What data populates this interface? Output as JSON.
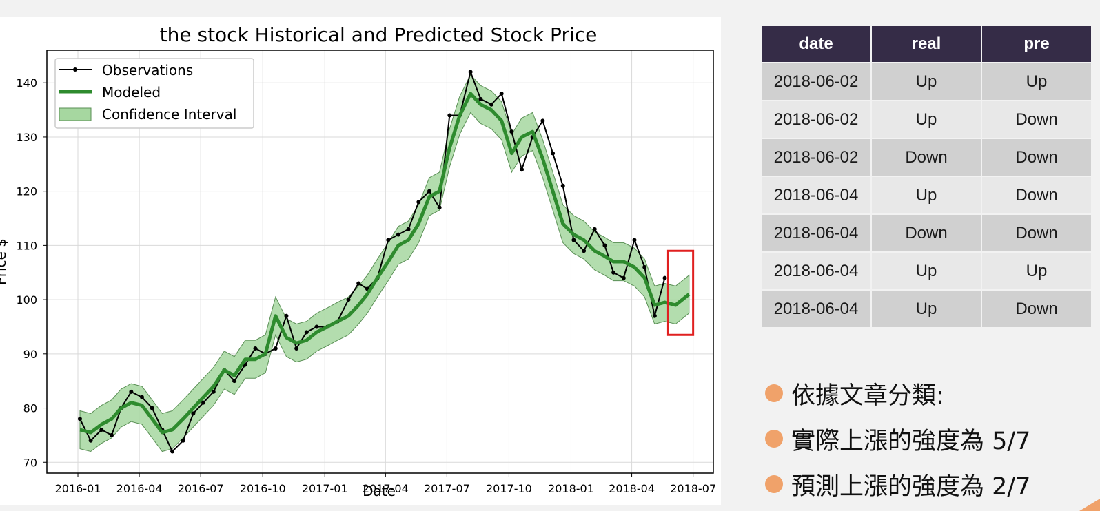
{
  "colors": {
    "observations": "#000000",
    "modeled": "#2e8b2e",
    "confidence": "#a6d7a0",
    "highlight_box": "#e02020",
    "table_header_bg": "#352c47",
    "bullet": "#f0a26a"
  },
  "chart_data": {
    "type": "line",
    "title": "the stock Historical and Predicted Stock Price",
    "xlabel": "Date",
    "ylabel": "Price $",
    "x_ticks": [
      "2016-01",
      "2016-04",
      "2016-07",
      "2016-10",
      "2017-01",
      "2017-04",
      "2017-07",
      "2017-10",
      "2018-01",
      "2018-04",
      "2018-07"
    ],
    "y_ticks": [
      70,
      80,
      90,
      100,
      110,
      120,
      130,
      140
    ],
    "xlim": [
      "2015-11-16",
      "2018-07-31"
    ],
    "ylim": [
      68,
      146
    ],
    "grid": true,
    "legend_position": "top-left",
    "legend": [
      "Observations",
      "Modeled",
      "Confidence Interval"
    ],
    "series": [
      {
        "name": "Observations",
        "x": [
          "2016-01-04",
          "2016-01-20",
          "2016-02-05",
          "2016-02-20",
          "2016-03-05",
          "2016-03-20",
          "2016-04-05",
          "2016-04-20",
          "2016-05-05",
          "2016-05-20",
          "2016-06-05",
          "2016-06-20",
          "2016-07-05",
          "2016-07-20",
          "2016-08-05",
          "2016-08-20",
          "2016-09-05",
          "2016-09-20",
          "2016-10-05",
          "2016-10-20",
          "2016-11-05",
          "2016-11-20",
          "2016-12-05",
          "2016-12-20",
          "2017-01-05",
          "2017-01-20",
          "2017-02-05",
          "2017-02-20",
          "2017-03-05",
          "2017-03-20",
          "2017-04-05",
          "2017-04-20",
          "2017-05-05",
          "2017-05-20",
          "2017-06-05",
          "2017-06-20",
          "2017-07-05",
          "2017-07-20",
          "2017-08-05",
          "2017-08-20",
          "2017-09-05",
          "2017-09-20",
          "2017-10-05",
          "2017-10-20",
          "2017-11-05",
          "2017-11-20",
          "2017-12-05",
          "2017-12-20",
          "2018-01-05",
          "2018-01-20",
          "2018-02-05",
          "2018-02-20",
          "2018-03-05",
          "2018-03-20",
          "2018-04-05",
          "2018-04-20",
          "2018-05-05",
          "2018-05-20"
        ],
        "y": [
          78,
          74,
          76,
          75,
          80,
          83,
          82,
          80,
          76,
          72,
          74,
          79,
          81,
          83,
          87,
          85,
          88,
          91,
          90,
          91,
          97,
          91,
          94,
          95,
          95,
          96,
          100,
          103,
          102,
          104,
          111,
          112,
          113,
          118,
          120,
          117,
          134,
          134,
          142,
          137,
          136,
          138,
          131,
          124,
          130,
          133,
          127,
          121,
          111,
          109,
          113,
          110,
          105,
          104,
          111,
          106,
          97,
          104
        ]
      },
      {
        "name": "Modeled",
        "x": [
          "2016-01-04",
          "2016-01-20",
          "2016-02-05",
          "2016-02-20",
          "2016-03-05",
          "2016-03-20",
          "2016-04-05",
          "2016-04-20",
          "2016-05-05",
          "2016-05-20",
          "2016-06-05",
          "2016-06-20",
          "2016-07-05",
          "2016-07-20",
          "2016-08-05",
          "2016-08-20",
          "2016-09-05",
          "2016-09-20",
          "2016-10-05",
          "2016-10-20",
          "2016-11-05",
          "2016-11-20",
          "2016-12-05",
          "2016-12-20",
          "2017-01-05",
          "2017-01-20",
          "2017-02-05",
          "2017-02-20",
          "2017-03-05",
          "2017-03-20",
          "2017-04-05",
          "2017-04-20",
          "2017-05-05",
          "2017-05-20",
          "2017-06-05",
          "2017-06-20",
          "2017-07-05",
          "2017-07-20",
          "2017-08-05",
          "2017-08-20",
          "2017-09-05",
          "2017-09-20",
          "2017-10-05",
          "2017-10-20",
          "2017-11-05",
          "2017-11-20",
          "2017-12-05",
          "2017-12-20",
          "2018-01-05",
          "2018-01-20",
          "2018-02-05",
          "2018-02-20",
          "2018-03-05",
          "2018-03-20",
          "2018-04-05",
          "2018-04-20",
          "2018-05-05",
          "2018-05-20",
          "2018-06-05",
          "2018-06-25"
        ],
        "y": [
          76,
          75.5,
          77,
          78,
          80,
          81,
          80.5,
          78,
          75.5,
          76,
          78,
          80,
          82,
          84,
          87,
          86,
          89,
          89,
          90,
          97,
          93,
          92,
          92.5,
          94,
          95,
          96,
          97,
          99,
          101,
          104,
          107,
          110,
          111,
          114,
          119,
          120,
          128,
          134,
          138,
          136,
          135,
          133,
          127,
          130,
          131,
          126,
          120,
          114,
          112,
          111,
          109,
          108,
          107,
          107,
          106,
          104,
          99,
          99.5,
          99,
          101
        ]
      },
      {
        "name": "Confidence Interval",
        "x": [
          "2016-01-04",
          "2016-01-20",
          "2016-02-05",
          "2016-02-20",
          "2016-03-05",
          "2016-03-20",
          "2016-04-05",
          "2016-04-20",
          "2016-05-05",
          "2016-05-20",
          "2016-06-05",
          "2016-06-20",
          "2016-07-05",
          "2016-07-20",
          "2016-08-05",
          "2016-08-20",
          "2016-09-05",
          "2016-09-20",
          "2016-10-05",
          "2016-10-20",
          "2016-11-05",
          "2016-11-20",
          "2016-12-05",
          "2016-12-20",
          "2017-01-05",
          "2017-01-20",
          "2017-02-05",
          "2017-02-20",
          "2017-03-05",
          "2017-03-20",
          "2017-04-05",
          "2017-04-20",
          "2017-05-05",
          "2017-05-20",
          "2017-06-05",
          "2017-06-20",
          "2017-07-05",
          "2017-07-20",
          "2017-08-05",
          "2017-08-20",
          "2017-09-05",
          "2017-09-20",
          "2017-10-05",
          "2017-10-20",
          "2017-11-05",
          "2017-11-20",
          "2017-12-05",
          "2017-12-20",
          "2018-01-05",
          "2018-01-20",
          "2018-02-05",
          "2018-02-20",
          "2018-03-05",
          "2018-03-20",
          "2018-04-05",
          "2018-04-20",
          "2018-05-05",
          "2018-05-20",
          "2018-06-05",
          "2018-06-25"
        ],
        "half_width": 3.5
      }
    ],
    "highlight": {
      "x_range": [
        "2018-05-25",
        "2018-07-01"
      ],
      "y_range": [
        93.5,
        109
      ]
    }
  },
  "table": {
    "headers": [
      "date",
      "real",
      "pre"
    ],
    "rows": [
      [
        "2018-06-02",
        "Up",
        "Up"
      ],
      [
        "2018-06-02",
        "Up",
        "Down"
      ],
      [
        "2018-06-02",
        "Down",
        "Down"
      ],
      [
        "2018-06-04",
        "Up",
        "Down"
      ],
      [
        "2018-06-04",
        "Down",
        "Down"
      ],
      [
        "2018-06-04",
        "Up",
        "Up"
      ],
      [
        "2018-06-04",
        "Up",
        "Down"
      ]
    ]
  },
  "bullets": [
    "依據文章分類:",
    "實際上漲的強度為 5/7",
    "預測上漲的強度為 2/7"
  ]
}
